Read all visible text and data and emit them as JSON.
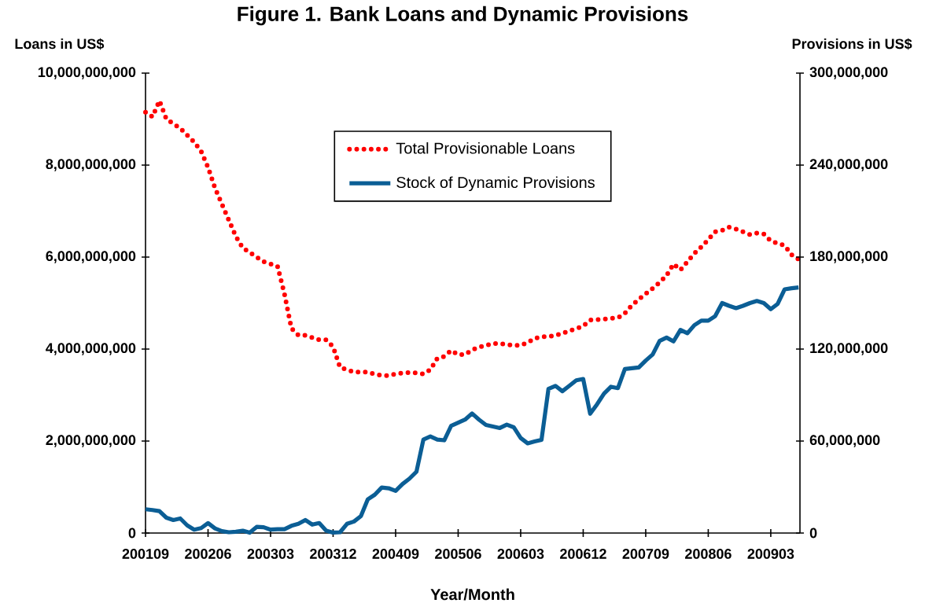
{
  "chart_data": {
    "type": "line",
    "title": "Figure 1. Bank Loans and Dynamic Provisions",
    "xlabel": "Year/Month",
    "ylabel": "Loans in US$",
    "y2label": "Provisions in US$",
    "categories": [
      "200109",
      null,
      null,
      null,
      null,
      null,
      null,
      null,
      null,
      "200206",
      null,
      null,
      null,
      null,
      null,
      null,
      null,
      null,
      "200303",
      null,
      null,
      null,
      null,
      null,
      null,
      null,
      null,
      "200312",
      null,
      null,
      null,
      null,
      null,
      null,
      null,
      null,
      "200409",
      null,
      null,
      null,
      null,
      null,
      null,
      null,
      null,
      "200506",
      null,
      null,
      null,
      null,
      null,
      null,
      null,
      null,
      "200603",
      null,
      null,
      null,
      null,
      null,
      null,
      null,
      null,
      "200612",
      null,
      null,
      null,
      null,
      null,
      null,
      null,
      null,
      "200709",
      null,
      null,
      null,
      null,
      null,
      null,
      null,
      null,
      "200806",
      null,
      null,
      null,
      null,
      null,
      null,
      null,
      null,
      "200903",
      null,
      null,
      null,
      null
    ],
    "series": [
      {
        "name": "Total Provisionable Loans",
        "color": "#ff0000",
        "line_style": "dotted",
        "axis": "y",
        "values": [
          9150000000.0,
          9050000000.0,
          9400000000.0,
          9000000000.0,
          8900000000.0,
          8800000000.0,
          8650000000.0,
          8500000000.0,
          8300000000.0,
          7950000000.0,
          7500000000.0,
          7150000000.0,
          6800000000.0,
          6450000000.0,
          6200000000.0,
          6100000000.0,
          6000000000.0,
          5900000000.0,
          5850000000.0,
          5800000000.0,
          5200000000.0,
          4450000000.0,
          4300000000.0,
          4300000000.0,
          4250000000.0,
          4200000000.0,
          4200000000.0,
          4050000000.0,
          3600000000.0,
          3550000000.0,
          3500000000.0,
          3500000000.0,
          3500000000.0,
          3450000000.0,
          3430000000.0,
          3420000000.0,
          3460000000.0,
          3480000000.0,
          3490000000.0,
          3480000000.0,
          3460000000.0,
          3550000000.0,
          3800000000.0,
          3840000000.0,
          3970000000.0,
          3880000000.0,
          3880000000.0,
          3980000000.0,
          4040000000.0,
          4080000000.0,
          4120000000.0,
          4120000000.0,
          4100000000.0,
          4080000000.0,
          4080000000.0,
          4140000000.0,
          4230000000.0,
          4270000000.0,
          4270000000.0,
          4300000000.0,
          4340000000.0,
          4400000000.0,
          4440000000.0,
          4500000000.0,
          4630000000.0,
          4640000000.0,
          4650000000.0,
          4670000000.0,
          4680000000.0,
          4780000000.0,
          4950000000.0,
          5080000000.0,
          5200000000.0,
          5320000000.0,
          5450000000.0,
          5600000000.0,
          5850000000.0,
          5720000000.0,
          5900000000.0,
          6080000000.0,
          6220000000.0,
          6380000000.0,
          6550000000.0,
          6580000000.0,
          6650000000.0,
          6610000000.0,
          6550000000.0,
          6490000000.0,
          6520000000.0,
          6500000000.0,
          6350000000.0,
          6300000000.0,
          6250000000.0,
          6050000000.0,
          5950000000.0
        ]
      },
      {
        "name": "Stock of Dynamic Provisions",
        "color": "#0b5e95",
        "line_style": "solid",
        "axis": "y2",
        "values": [
          15500000.0,
          15000000.0,
          14300000.0,
          10000000.0,
          8500000.0,
          9500000.0,
          5000000.0,
          2200000.0,
          3200000.0,
          6500000.0,
          3000000.0,
          1200000.0,
          500000.0,
          800000.0,
          1500000.0,
          200000.0,
          4000000.0,
          3800000.0,
          2200000.0,
          2500000.0,
          2500000.0,
          4700000.0,
          6000000.0,
          8500000.0,
          5500000.0,
          6500000.0,
          1500000.0,
          300000.0,
          500000.0,
          6000000.0,
          7500000.0,
          11000000.0,
          22000000.0,
          25000000.0,
          29700000.0,
          29200000.0,
          27500000.0,
          32000000.0,
          35500000.0,
          40000000.0,
          61000000.0,
          63000000.0,
          61000000.0,
          60500000.0,
          70000000.0,
          72000000.0,
          74000000.0,
          78000000.0,
          74000000.0,
          70500000.0,
          69500000.0,
          68500000.0,
          70700000.0,
          69000000.0,
          62000000.0,
          58500000.0,
          59700000.0,
          60800000.0,
          94000000.0,
          96000000.0,
          92500000.0,
          96000000.0,
          99600000.0,
          100500000.0,
          77800000.0,
          84000000.0,
          91000000.0,
          95400000.0,
          94500000.0,
          107000000.0,
          107500000.0,
          108000000.0,
          112500000.0,
          116500000.0,
          125300000.0,
          127500000.0,
          125000000.0,
          132500000.0,
          130300000.0,
          135600000.0,
          138500000.0,
          138500000.0,
          141500000.0,
          150000000.0,
          148200000.0,
          146700000.0,
          148200000.0,
          150000000.0,
          151400000.0,
          150000000.0,
          146000000.0,
          149500000.0,
          159000000.0,
          159700000.0,
          160200000.0
        ]
      }
    ],
    "ylim": [
      0,
      10000000000
    ],
    "yticks": [
      {
        "value": 0,
        "label": "0"
      },
      {
        "value": 2000000000,
        "label": "2,000,000,000"
      },
      {
        "value": 4000000000,
        "label": "4,000,000,000"
      },
      {
        "value": 6000000000,
        "label": "6,000,000,000"
      },
      {
        "value": 8000000000,
        "label": "8,000,000,000"
      },
      {
        "value": 10000000000,
        "label": "10,000,000,000"
      }
    ],
    "y2lim": [
      0,
      300000000
    ],
    "y2ticks": [
      {
        "value": 0,
        "label": "0"
      },
      {
        "value": 60000000,
        "label": "60,000,000"
      },
      {
        "value": 120000000,
        "label": "120,000,000"
      },
      {
        "value": 180000000,
        "label": "180,000,000"
      },
      {
        "value": 240000000,
        "label": "240,000,000"
      },
      {
        "value": 300000000,
        "label": "300,000,000"
      }
    ],
    "legend": "top",
    "grid": false,
    "marker": "none"
  }
}
